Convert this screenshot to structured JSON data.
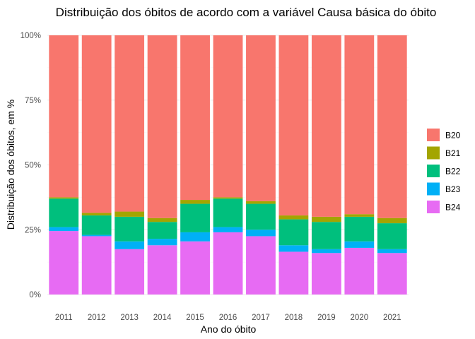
{
  "chart_data": {
    "type": "bar",
    "stacked": true,
    "normalized": true,
    "title": "Distribuição dos óbitos de acordo com a variável Causa básica do óbito",
    "xlabel": "Ano do óbito",
    "ylabel": "Distribuição dos óbitos, em %",
    "categories": [
      "2011",
      "2012",
      "2013",
      "2014",
      "2015",
      "2016",
      "2017",
      "2018",
      "2019",
      "2020",
      "2021"
    ],
    "ylim": [
      0,
      100
    ],
    "yticks": [
      0,
      25,
      50,
      75,
      100
    ],
    "ytick_labels": [
      "0%",
      "25%",
      "50%",
      "75%",
      "100%"
    ],
    "grid": true,
    "legend_position": "right",
    "stack_order_bottom_to_top": [
      "B24",
      "B23",
      "B22",
      "B21",
      "B20"
    ],
    "series": [
      {
        "name": "B20",
        "color": "#F8766D",
        "values": [
          62.5,
          68.5,
          68.0,
          70.5,
          63.5,
          62.5,
          64.0,
          69.5,
          70.0,
          69.0,
          70.5
        ]
      },
      {
        "name": "B21",
        "color": "#A3A500",
        "values": [
          0.5,
          1.0,
          2.0,
          1.5,
          1.5,
          0.5,
          1.0,
          1.5,
          2.0,
          1.0,
          2.0
        ]
      },
      {
        "name": "B22",
        "color": "#00BF7D",
        "values": [
          11.0,
          7.5,
          9.5,
          6.5,
          11.0,
          11.0,
          10.0,
          10.0,
          10.5,
          9.5,
          10.0
        ]
      },
      {
        "name": "B23",
        "color": "#00B0F6",
        "values": [
          1.5,
          0.5,
          3.0,
          2.5,
          3.5,
          2.0,
          2.5,
          2.5,
          1.5,
          2.5,
          1.5
        ]
      },
      {
        "name": "B24",
        "color": "#E76BF3",
        "values": [
          24.5,
          22.5,
          17.5,
          19.0,
          20.5,
          24.0,
          22.5,
          16.5,
          16.0,
          18.0,
          16.0
        ]
      }
    ],
    "legend": [
      "B20",
      "B21",
      "B22",
      "B23",
      "B24"
    ]
  }
}
